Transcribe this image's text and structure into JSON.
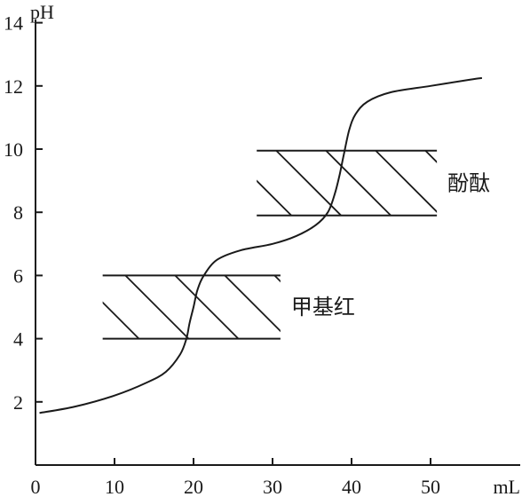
{
  "chart_data": {
    "type": "line",
    "xlabel": "mL",
    "ylabel": "pH",
    "xlim": [
      0,
      60
    ],
    "ylim": [
      0,
      14
    ],
    "x_ticks": [
      0,
      10,
      20,
      30,
      40,
      50
    ],
    "y_ticks": [
      2,
      4,
      6,
      8,
      10,
      12,
      14
    ],
    "grid": false,
    "series": [
      {
        "x": [
          0.5,
          5,
          10,
          14,
          16.5,
          18.3,
          19.1,
          19.5,
          20,
          20.5,
          21.3,
          23,
          26,
          30,
          33,
          35.5,
          37,
          37.9,
          38.5,
          39,
          39.7,
          40.5,
          42,
          45,
          50,
          55,
          56.5
        ],
        "y": [
          1.65,
          1.85,
          2.2,
          2.6,
          2.95,
          3.5,
          4.0,
          4.5,
          5.0,
          5.55,
          6.0,
          6.5,
          6.8,
          7.0,
          7.25,
          7.6,
          8.0,
          8.6,
          9.2,
          9.8,
          10.6,
          11.1,
          11.5,
          11.8,
          12.0,
          12.2,
          12.25
        ]
      }
    ],
    "bands": [
      {
        "label": "甲基红",
        "ymin": 4.0,
        "ymax": 6.0,
        "xmin": 8.5,
        "xmax": 31.0
      },
      {
        "label": "酚酞",
        "ymin": 7.9,
        "ymax": 9.95,
        "xmin": 28.0,
        "xmax": 50.8
      }
    ]
  }
}
